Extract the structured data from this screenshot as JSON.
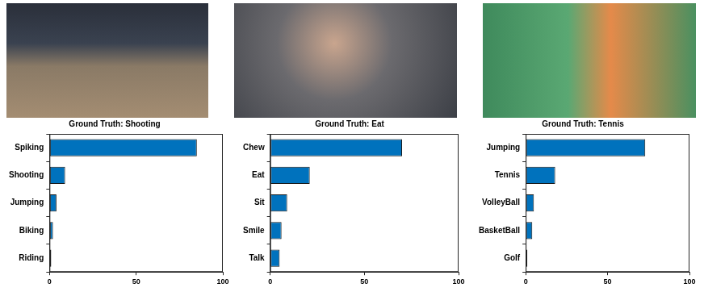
{
  "chart_data": [
    {
      "type": "bar",
      "orientation": "horizontal",
      "title": "Ground Truth: Shooting",
      "categories": [
        "Spiking",
        "Shooting",
        "Jumping",
        "Biking",
        "Riding"
      ],
      "values": [
        85,
        9,
        4,
        2,
        1
      ],
      "color": "#0072bd",
      "xlim": [
        0,
        100
      ],
      "xticks": [
        0,
        50,
        100
      ],
      "grid": false
    },
    {
      "type": "bar",
      "orientation": "horizontal",
      "title": "Ground Truth: Eat",
      "categories": [
        "Chew",
        "Eat",
        "Sit",
        "Smile",
        "Talk"
      ],
      "values": [
        70,
        21,
        9,
        6,
        5
      ],
      "color": "#0072bd",
      "xlim": [
        0,
        100
      ],
      "xticks": [
        0,
        50,
        100
      ],
      "grid": false
    },
    {
      "type": "bar",
      "orientation": "horizontal",
      "title": "Ground Truth: Tennis",
      "categories": [
        "Jumping",
        "Tennis",
        "VolleyBall",
        "BasketBall",
        "Golf"
      ],
      "values": [
        73,
        18,
        5,
        4,
        1
      ],
      "color": "#0072bd",
      "xlim": [
        0,
        100
      ],
      "xticks": [
        0,
        50,
        100
      ],
      "grid": false
    }
  ]
}
